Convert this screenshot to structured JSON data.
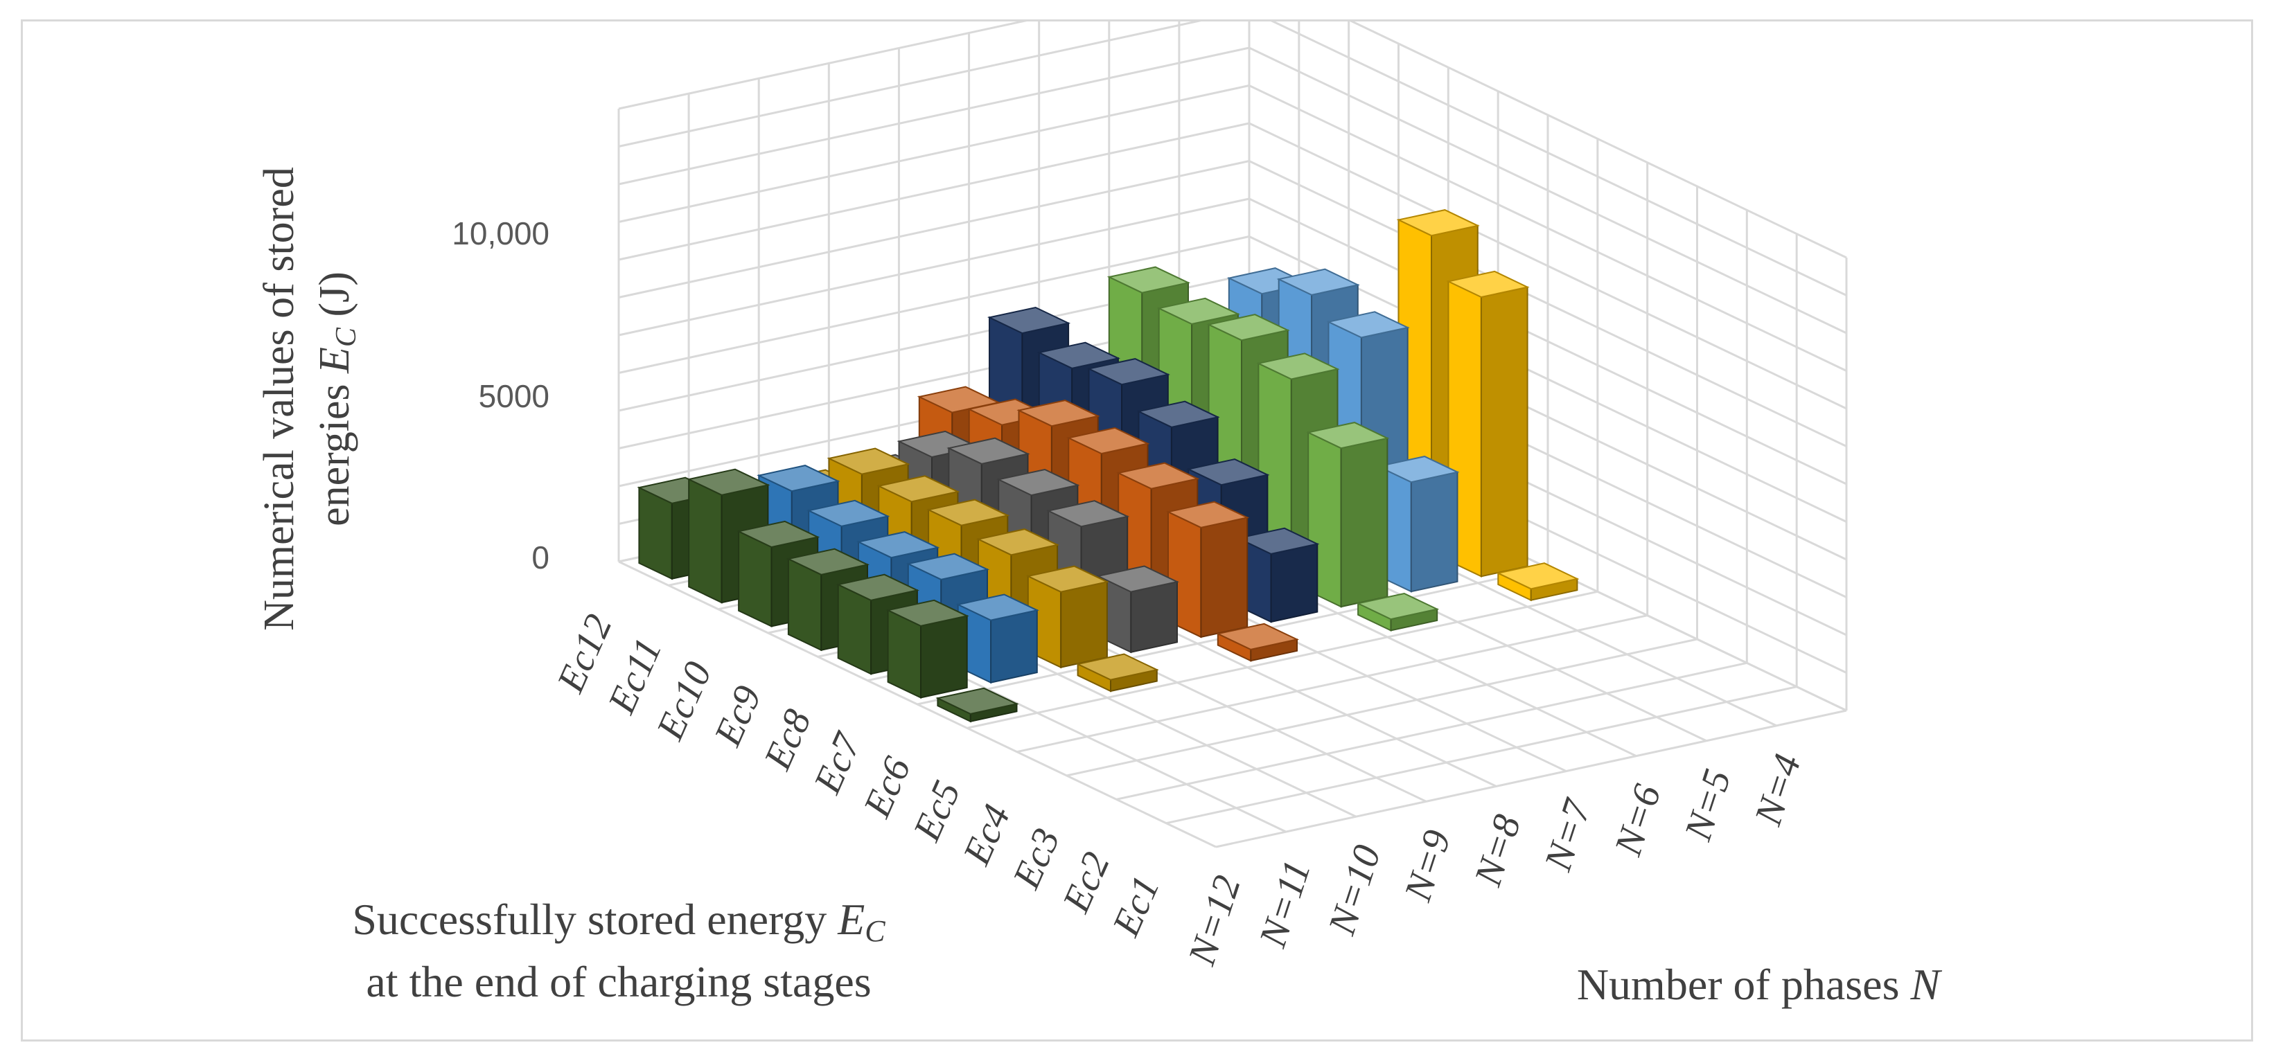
{
  "chart_data": {
    "type": "bar",
    "subtype": "3d-column",
    "yticks": [
      "10,000",
      "5000",
      "0"
    ],
    "ylim": [
      0,
      10000
    ],
    "y_title_line1": "Numerical  values of stored",
    "y_title_line2_text": "energies ",
    "y_title_line2_symbol": "E",
    "y_title_line2_sub": "C",
    "y_title_line2_unit": " (J)",
    "stage_title_line1_text": "Successfully stored energy ",
    "stage_title_line1_symbol": "E",
    "stage_title_line1_sub": "C",
    "stage_title_line2": "at the end of charging stages",
    "phase_title_text": "Number  of phases ",
    "phase_title_symbol": "N",
    "stages": [
      "Ec1",
      "Ec2",
      "Ec3",
      "Ec4",
      "Ec5",
      "Ec6",
      "Ec7",
      "Ec8",
      "Ec9",
      "Ec10",
      "Ec11",
      "Ec12"
    ],
    "phases": [
      "N=12",
      "N=11",
      "N=10",
      "N=9",
      "N=8",
      "N=7",
      "N=6",
      "N=5",
      "N=4"
    ],
    "series": [
      {
        "values": [
          0,
          0,
          0,
          0,
          0,
          200,
          1900,
          1950,
          2000,
          2100,
          2850,
          2000
        ]
      },
      {
        "values": [
          0,
          0,
          0,
          0,
          0,
          0,
          1650,
          2100,
          2050,
          2250,
          2550,
          1500
        ]
      },
      {
        "values": [
          0,
          0,
          0,
          0,
          0,
          300,
          2000,
          2350,
          2500,
          2500,
          2600,
          1400
        ]
      },
      {
        "values": [
          0,
          0,
          0,
          0,
          0,
          0,
          1600,
          2700,
          2900,
          3100,
          2650,
          1400
        ]
      },
      {
        "values": [
          0,
          0,
          0,
          0,
          0,
          300,
          2900,
          3300,
          3600,
          3700,
          3100,
          2800
        ]
      },
      {
        "values": [
          0,
          0,
          0,
          0,
          0,
          0,
          1800,
          3000,
          3900,
          4400,
          4200,
          4500
        ]
      },
      {
        "values": [
          0,
          0,
          0,
          0,
          0,
          300,
          4200,
          5400,
          5800,
          5600,
          5800,
          0
        ]
      },
      {
        "values": [
          0,
          0,
          0,
          0,
          0,
          0,
          2900,
          6100,
          6600,
          6000,
          0,
          0
        ]
      },
      {
        "values": [
          0,
          0,
          0,
          0,
          0,
          300,
          7400,
          8400,
          0,
          0,
          0,
          0
        ]
      }
    ],
    "colors": [
      "#375623",
      "#2e75b6",
      "#bf8f00",
      "#595959",
      "#c55a11",
      "#203864",
      "#70ad47",
      "#5b9bd5",
      "#ffc000"
    ],
    "grid": true,
    "legend": "none"
  }
}
